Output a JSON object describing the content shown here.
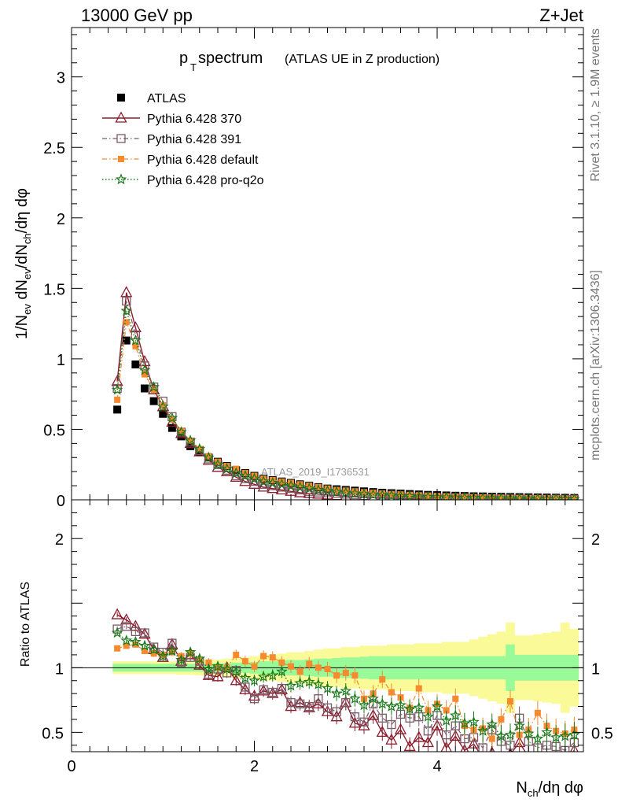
{
  "header": {
    "left": "13000 GeV pp",
    "right": "Z+Jet"
  },
  "side_text": {
    "top": "Rivet 3.1.10, ≥ 1.9M events",
    "bottom": "mcplots.cern.ch [arXiv:1306.3436]"
  },
  "watermark": "ATLAS_2019_I1736531",
  "colors": {
    "atlas": "#000000",
    "p370": "#8b1a2a",
    "p391": "#7a5a66",
    "pdef": "#f58a2e",
    "pq2o": "#1a7a1a",
    "band_green": "#98fa98",
    "band_yellow": "#fafa98"
  },
  "chart_data": [
    {
      "type": "scatter",
      "title_main": "p",
      "title_sub": "T",
      "title_main2": " spectrum",
      "title_extra": "(ATLAS UE in Z production)",
      "ylabel": "1/N_ev dN_ev/dN_ch/dη dφ",
      "xlim": [
        0,
        5.6
      ],
      "ylim": [
        0,
        3.35
      ],
      "yticks": [
        0,
        0.5,
        1,
        1.5,
        2,
        2.5,
        3
      ],
      "ytick_labels": [
        "0",
        "0.5",
        "1",
        "1.5",
        "2",
        "2.5",
        "3"
      ],
      "x": [
        0.5,
        0.6,
        0.7,
        0.8,
        0.9,
        1.0,
        1.1,
        1.2,
        1.3,
        1.4,
        1.5,
        1.6,
        1.7,
        1.8,
        1.9,
        2.0,
        2.1,
        2.2,
        2.3,
        2.4,
        2.5,
        2.6,
        2.7,
        2.8,
        2.9,
        3.0,
        3.1,
        3.2,
        3.3,
        3.4,
        3.5,
        3.6,
        3.7,
        3.8,
        3.9,
        4.0,
        4.1,
        4.2,
        4.3,
        4.4,
        4.5,
        4.6,
        4.7,
        4.8,
        4.9,
        5.0,
        5.1,
        5.2,
        5.3,
        5.4,
        5.5
      ],
      "legend": [
        {
          "label": "ATLAS",
          "marker": "square",
          "key": "atlas"
        },
        {
          "label": "Pythia 6.428 370",
          "marker": "triangle",
          "key": "p370"
        },
        {
          "label": "Pythia 6.428 391",
          "marker": "open-square",
          "key": "p391"
        },
        {
          "label": "Pythia 6.428 default",
          "marker": "small-square",
          "key": "pdef"
        },
        {
          "label": "Pythia 6.428 pro-q2o",
          "marker": "star",
          "key": "pq2o"
        }
      ],
      "series": [
        {
          "name": "ATLAS",
          "key": "atlas",
          "values": [
            0.64,
            1.13,
            0.96,
            0.79,
            0.7,
            0.61,
            0.51,
            0.45,
            0.38,
            0.34,
            0.3,
            0.27,
            0.24,
            0.21,
            0.19,
            0.17,
            0.15,
            0.14,
            0.13,
            0.12,
            0.11,
            0.1,
            0.09,
            0.08,
            0.075,
            0.07,
            0.065,
            0.06,
            0.055,
            0.05,
            0.047,
            0.044,
            0.041,
            0.038,
            0.035,
            0.033,
            0.031,
            0.029,
            0.027,
            0.025,
            0.024,
            0.022,
            0.021,
            0.02,
            0.019,
            0.018,
            0.017,
            0.016,
            0.015,
            0.014,
            0.013
          ]
        },
        {
          "name": "Pythia 6.428 370",
          "key": "p370",
          "values": [
            0.84,
            1.47,
            1.22,
            0.98,
            0.78,
            0.66,
            0.55,
            0.47,
            0.4,
            0.34,
            0.28,
            0.23,
            0.2,
            0.16,
            0.13,
            0.11,
            0.09,
            0.08,
            0.07,
            0.06,
            0.05,
            0.045,
            0.04,
            0.034,
            0.03,
            0.025,
            0.021,
            0.018,
            0.015,
            0.013,
            0.011,
            0.01,
            0.009,
            0.008,
            0.007,
            0.006,
            0.005,
            0.005,
            0.004,
            0.004,
            0.003,
            0.003,
            0.003,
            0.002,
            0.002,
            0.002,
            0.002,
            0.001,
            0.001,
            0.001,
            0.001
          ]
        },
        {
          "name": "Pythia 6.428 391",
          "key": "p391",
          "values": [
            0.79,
            1.41,
            1.17,
            0.95,
            0.8,
            0.7,
            0.59,
            0.48,
            0.41,
            0.35,
            0.29,
            0.25,
            0.21,
            0.17,
            0.15,
            0.13,
            0.11,
            0.1,
            0.09,
            0.08,
            0.07,
            0.06,
            0.055,
            0.05,
            0.045,
            0.04,
            0.035,
            0.03,
            0.027,
            0.024,
            0.021,
            0.019,
            0.017,
            0.015,
            0.013,
            0.012,
            0.011,
            0.01,
            0.009,
            0.008,
            0.007,
            0.007,
            0.006,
            0.006,
            0.005,
            0.005,
            0.004,
            0.004,
            0.004,
            0.003,
            0.003
          ]
        },
        {
          "name": "Pythia 6.428 default",
          "key": "pdef",
          "values": [
            0.71,
            1.26,
            1.09,
            0.89,
            0.78,
            0.67,
            0.57,
            0.49,
            0.42,
            0.36,
            0.31,
            0.27,
            0.24,
            0.22,
            0.19,
            0.17,
            0.15,
            0.14,
            0.13,
            0.12,
            0.11,
            0.1,
            0.09,
            0.08,
            0.07,
            0.065,
            0.06,
            0.054,
            0.05,
            0.045,
            0.041,
            0.038,
            0.035,
            0.032,
            0.03,
            0.027,
            0.025,
            0.023,
            0.021,
            0.019,
            0.018,
            0.016,
            0.015,
            0.014,
            0.013,
            0.012,
            0.011,
            0.01,
            0.009,
            0.008,
            0.007
          ]
        },
        {
          "name": "Pythia 6.428 pro-q2o",
          "key": "pq2o",
          "values": [
            0.78,
            1.34,
            1.13,
            0.92,
            0.8,
            0.66,
            0.58,
            0.48,
            0.42,
            0.36,
            0.3,
            0.25,
            0.22,
            0.19,
            0.17,
            0.15,
            0.13,
            0.12,
            0.11,
            0.1,
            0.09,
            0.08,
            0.07,
            0.063,
            0.056,
            0.05,
            0.045,
            0.04,
            0.036,
            0.033,
            0.03,
            0.027,
            0.025,
            0.022,
            0.02,
            0.018,
            0.017,
            0.015,
            0.014,
            0.013,
            0.012,
            0.011,
            0.01,
            0.009,
            0.008,
            0.008,
            0.007,
            0.006,
            0.006,
            0.005,
            0.005
          ]
        }
      ]
    },
    {
      "type": "scatter",
      "ylabel": "Ratio to ATLAS",
      "xlabel": "N_ch/dη dφ",
      "xlim": [
        0,
        5.6
      ],
      "ylim": [
        0.35,
        2.3
      ],
      "yticks": [
        0.5,
        1,
        2
      ],
      "ytick_labels": [
        "0.5",
        "1",
        "2"
      ],
      "xticks": [
        0,
        2,
        4
      ],
      "xtick_labels": [
        "0",
        "2",
        "4"
      ],
      "band_green_halfwidth": [
        0.03,
        0.03,
        0.03,
        0.03,
        0.03,
        0.03,
        0.03,
        0.03,
        0.03,
        0.03,
        0.03,
        0.035,
        0.035,
        0.04,
        0.04,
        0.045,
        0.05,
        0.05,
        0.055,
        0.06,
        0.06,
        0.065,
        0.07,
        0.07,
        0.075,
        0.08,
        0.08,
        0.085,
        0.09,
        0.09,
        0.09,
        0.09,
        0.09,
        0.09,
        0.09,
        0.09,
        0.09,
        0.09,
        0.09,
        0.09,
        0.09,
        0.09,
        0.09,
        0.18,
        0.1,
        0.1,
        0.1,
        0.1,
        0.1,
        0.1,
        0.1
      ],
      "band_yellow_halfwidth": [
        0.05,
        0.05,
        0.05,
        0.05,
        0.05,
        0.05,
        0.05,
        0.055,
        0.055,
        0.06,
        0.06,
        0.065,
        0.07,
        0.08,
        0.08,
        0.09,
        0.1,
        0.1,
        0.11,
        0.12,
        0.12,
        0.13,
        0.14,
        0.15,
        0.15,
        0.16,
        0.16,
        0.17,
        0.17,
        0.17,
        0.18,
        0.18,
        0.18,
        0.19,
        0.19,
        0.19,
        0.2,
        0.2,
        0.2,
        0.22,
        0.24,
        0.26,
        0.28,
        0.35,
        0.25,
        0.25,
        0.26,
        0.27,
        0.28,
        0.35,
        0.3
      ],
      "series": [
        {
          "name": "Pythia 6.428 370",
          "key": "p370",
          "values": [
            1.41,
            1.37,
            1.32,
            1.26,
            1.14,
            1.08,
            1.18,
            1.05,
            1.1,
            1.02,
            0.94,
            0.93,
            1.0,
            0.9,
            0.83,
            0.78,
            0.82,
            0.8,
            0.83,
            0.7,
            0.73,
            0.69,
            0.72,
            0.66,
            0.62,
            0.73,
            0.57,
            0.55,
            0.63,
            0.5,
            0.44,
            0.52,
            0.39,
            0.46,
            0.42,
            0.55,
            0.38,
            0.47,
            0.36,
            0.41,
            0.3,
            0.34,
            0.29,
            0.33,
            0.42,
            0.31,
            0.29,
            0.3,
            0.28,
            0.29,
            0.36
          ]
        },
        {
          "name": "Pythia 6.428 391",
          "key": "p391",
          "values": [
            1.3,
            1.32,
            1.28,
            1.27,
            1.16,
            1.12,
            1.19,
            1.04,
            1.08,
            1.05,
            0.95,
            0.99,
            0.96,
            0.98,
            0.85,
            0.76,
            0.83,
            0.81,
            0.84,
            0.73,
            0.72,
            0.7,
            0.76,
            0.69,
            0.66,
            0.73,
            0.62,
            0.58,
            0.72,
            0.61,
            0.56,
            0.64,
            0.61,
            0.62,
            0.51,
            0.63,
            0.48,
            0.55,
            0.45,
            0.46,
            0.38,
            0.52,
            0.43,
            0.4,
            0.61,
            0.43,
            0.38,
            0.4,
            0.39,
            0.36,
            0.42
          ]
        },
        {
          "name": "Pythia 6.428 default",
          "key": "pdef",
          "values": [
            1.15,
            1.17,
            1.18,
            1.13,
            1.11,
            1.1,
            1.12,
            1.09,
            1.11,
            1.06,
            1.04,
            1.0,
            1.0,
            1.1,
            1.05,
            1.01,
            1.09,
            1.08,
            1.04,
            1.01,
            0.97,
            1.03,
            1.0,
            0.99,
            0.94,
            0.96,
            0.94,
            0.76,
            0.8,
            0.91,
            0.81,
            0.77,
            0.69,
            0.84,
            0.67,
            0.72,
            0.67,
            0.76,
            0.55,
            0.52,
            0.53,
            0.45,
            0.6,
            0.74,
            0.48,
            0.52,
            0.65,
            0.55,
            0.51,
            0.49,
            0.52
          ]
        },
        {
          "name": "Pythia 6.428 pro-q2o",
          "key": "pq2o",
          "values": [
            1.27,
            1.21,
            1.2,
            1.17,
            1.14,
            1.09,
            1.13,
            1.06,
            1.12,
            1.07,
            0.99,
            1.01,
            0.99,
            0.97,
            0.92,
            0.9,
            0.93,
            0.94,
            0.97,
            0.86,
            0.88,
            0.89,
            0.87,
            0.84,
            0.8,
            0.82,
            0.76,
            0.71,
            0.76,
            0.72,
            0.7,
            0.71,
            0.68,
            0.69,
            0.62,
            0.7,
            0.59,
            0.63,
            0.57,
            0.58,
            0.51,
            0.56,
            0.47,
            0.48,
            0.55,
            0.49,
            0.45,
            0.5,
            0.46,
            0.47,
            0.48
          ]
        }
      ]
    }
  ]
}
